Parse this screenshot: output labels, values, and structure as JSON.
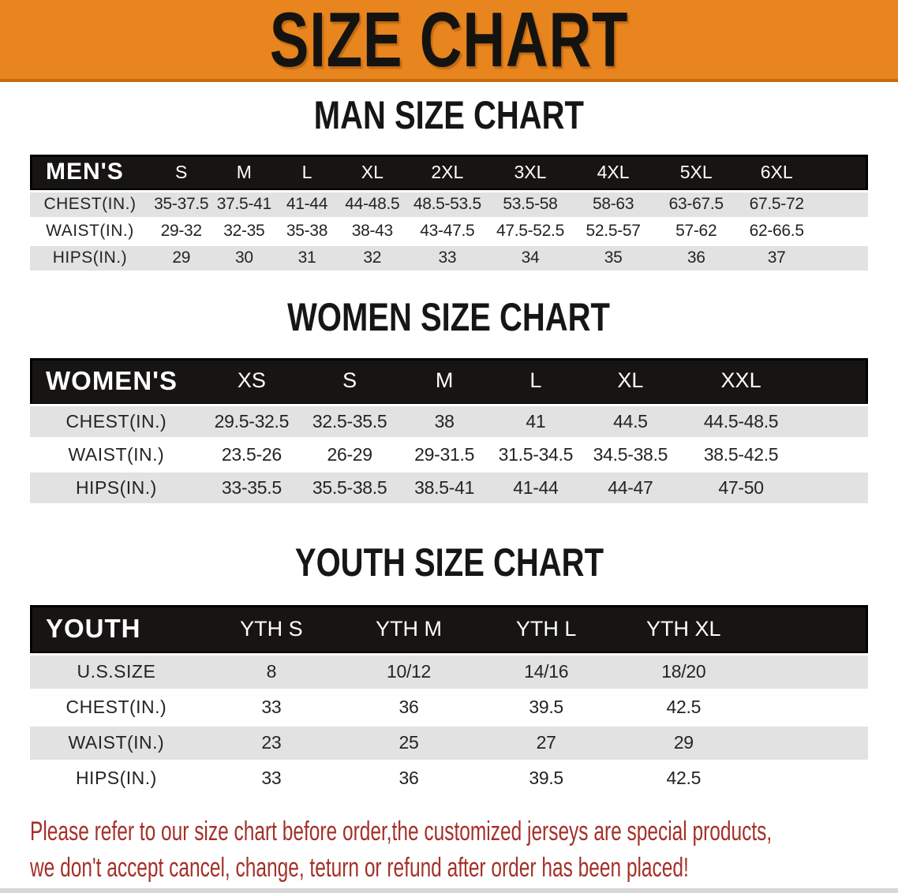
{
  "colors": {
    "banner_bg": "#E8851E",
    "banner_border": "#C56E0E",
    "table_header_bg": "#171513",
    "row_stripe": "#E2E2E2",
    "body_text": "#242424",
    "disclaimer_red": "#A43028"
  },
  "banner": {
    "title": "SIZE CHART"
  },
  "sections": [
    {
      "heading": "MAN SIZE CHART",
      "table": {
        "label": "MEN'S",
        "columns": [
          "S",
          "M",
          "L",
          "XL",
          "2XL",
          "3XL",
          "4XL",
          "5XL",
          "6XL"
        ],
        "rows": [
          {
            "label": "CHEST(IN.)",
            "values": [
              "35-37.5",
              "37.5-41",
              "41-44",
              "44-48.5",
              "48.5-53.5",
              "53.5-58",
              "58-63",
              "63-67.5",
              "67.5-72"
            ]
          },
          {
            "label": "WAIST(IN.)",
            "values": [
              "29-32",
              "32-35",
              "35-38",
              "38-43",
              "43-47.5",
              "47.5-52.5",
              "52.5-57",
              "57-62",
              "62-66.5"
            ]
          },
          {
            "label": "HIPS(IN.)",
            "values": [
              "29",
              "30",
              "31",
              "32",
              "33",
              "34",
              "35",
              "36",
              "37"
            ]
          }
        ]
      }
    },
    {
      "heading": "WOMEN SIZE CHART",
      "table": {
        "label": "WOMEN'S",
        "columns": [
          "XS",
          "S",
          "M",
          "L",
          "XL",
          "XXL"
        ],
        "rows": [
          {
            "label": "CHEST(IN.)",
            "values": [
              "29.5-32.5",
              "32.5-35.5",
              "38",
              "41",
              "44.5",
              "44.5-48.5"
            ]
          },
          {
            "label": "WAIST(IN.)",
            "values": [
              "23.5-26",
              "26-29",
              "29-31.5",
              "31.5-34.5",
              "34.5-38.5",
              "38.5-42.5"
            ]
          },
          {
            "label": "HIPS(IN.)",
            "values": [
              "33-35.5",
              "35.5-38.5",
              "38.5-41",
              "41-44",
              "44-47",
              "47-50"
            ]
          }
        ]
      }
    },
    {
      "heading": "YOUTH SIZE CHART",
      "table": {
        "label": "YOUTH",
        "columns": [
          "YTH S",
          "YTH M",
          "YTH L",
          "YTH XL"
        ],
        "rows": [
          {
            "label": "U.S.SIZE",
            "values": [
              "8",
              "10/12",
              "14/16",
              "18/20"
            ]
          },
          {
            "label": "CHEST(IN.)",
            "values": [
              "33",
              "36",
              "39.5",
              "42.5"
            ]
          },
          {
            "label": "WAIST(IN.)",
            "values": [
              "23",
              "25",
              "27",
              "29"
            ]
          },
          {
            "label": "HIPS(IN.)",
            "values": [
              "33",
              "36",
              "39.5",
              "42.5"
            ]
          }
        ]
      }
    }
  ],
  "disclaimer": {
    "line1": "Please refer to our size chart before order,the customized jerseys are special products,",
    "line2": "we don't accept cancel, change, teturn or refund after order has been placed!"
  }
}
